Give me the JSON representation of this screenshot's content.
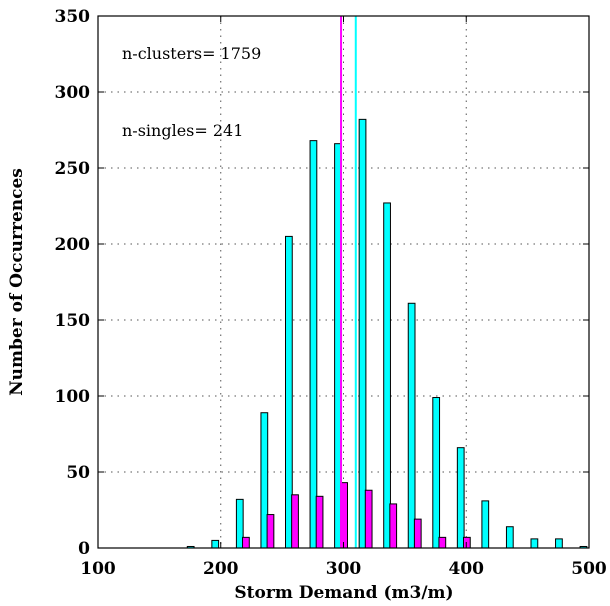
{
  "chart_data": {
    "type": "bar",
    "xlabel": "Storm Demand (m3/m)",
    "ylabel": "Number of Occurrences",
    "xlim": [
      100,
      500
    ],
    "ylim": [
      0,
      350
    ],
    "xticks": [
      "100",
      "200",
      "300",
      "400",
      "500"
    ],
    "yticks": [
      "0",
      "50",
      "100",
      "150",
      "200",
      "250",
      "300",
      "350"
    ],
    "grid": true,
    "bin_centers": [
      180,
      200,
      220,
      240,
      260,
      280,
      300,
      320,
      340,
      360,
      380,
      400,
      420,
      440,
      460,
      480,
      500
    ],
    "series": [
      {
        "values": [
          1,
          5,
          32,
          89,
          205,
          268,
          266,
          282,
          227,
          161,
          99,
          66,
          31,
          14,
          6,
          6,
          1
        ],
        "color": "#00ffff"
      },
      {
        "values": [
          0,
          0,
          7,
          22,
          35,
          34,
          43,
          38,
          29,
          19,
          7,
          7,
          0,
          0,
          0,
          0,
          0
        ],
        "color": "#ff00ff"
      }
    ],
    "mean_lines": [
      {
        "x": 298,
        "color": "#ff00ff"
      },
      {
        "x": 310,
        "color": "#00ffff"
      }
    ],
    "annotations": [
      "n-clusters= 1759",
      "n-singles= 241"
    ]
  }
}
